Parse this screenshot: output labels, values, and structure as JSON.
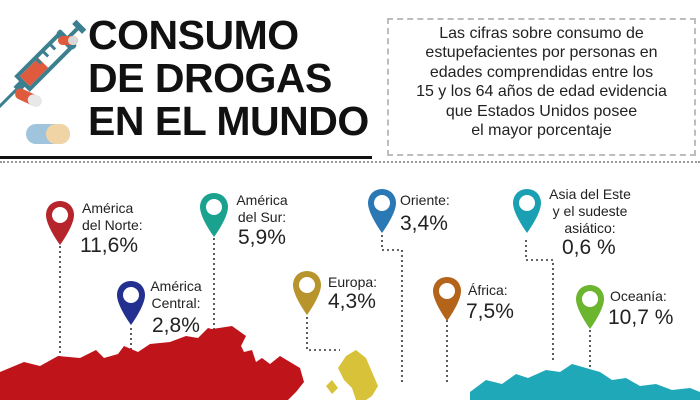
{
  "title": {
    "line1": "CONSUMO",
    "line2": "DE DROGAS",
    "line3": "EN EL MUNDO"
  },
  "description": {
    "lines": [
      "Las cifras sobre consumo de",
      "estupefacientes por personas en",
      "edades comprendidas entre los",
      "15 y los 64 años de edad evidencia",
      "que Estados Unidos posee",
      "el mayor porcentaje"
    ]
  },
  "regions": [
    {
      "label1": "América",
      "label2": "del Norte:",
      "value": "11,6%",
      "color": "#b5252b"
    },
    {
      "label1": "América",
      "label2": "Central:",
      "value": "2,8%",
      "color": "#23308f"
    },
    {
      "label1": "América",
      "label2": "del Sur:",
      "value": "5,9%",
      "color": "#1aa28f"
    },
    {
      "label1": "Europa:",
      "value": "4,3%",
      "color": "#b8952c"
    },
    {
      "label1": "Oriente:",
      "value": "3,4%",
      "color": "#2a78b4"
    },
    {
      "label1": "África:",
      "value": "7,5%",
      "color": "#b4631b"
    },
    {
      "label1": "Asia del Este",
      "label2": "y el sudeste",
      "label3": "asiático:",
      "value": "0,6 %",
      "color": "#1aa0b2"
    },
    {
      "label1": "Oceanía:",
      "value": "10,7 %",
      "color": "#6bb52f"
    }
  ],
  "colors": {
    "map_north_america": "#c0141b",
    "map_south_asia": "#1fa8b8",
    "map_europe": "#d8c23a",
    "syringe": "#3c7f8f",
    "pill_red": "#e05a3e"
  },
  "icons": [
    "syringe-icon",
    "pill-icon",
    "map-pin-icon"
  ]
}
